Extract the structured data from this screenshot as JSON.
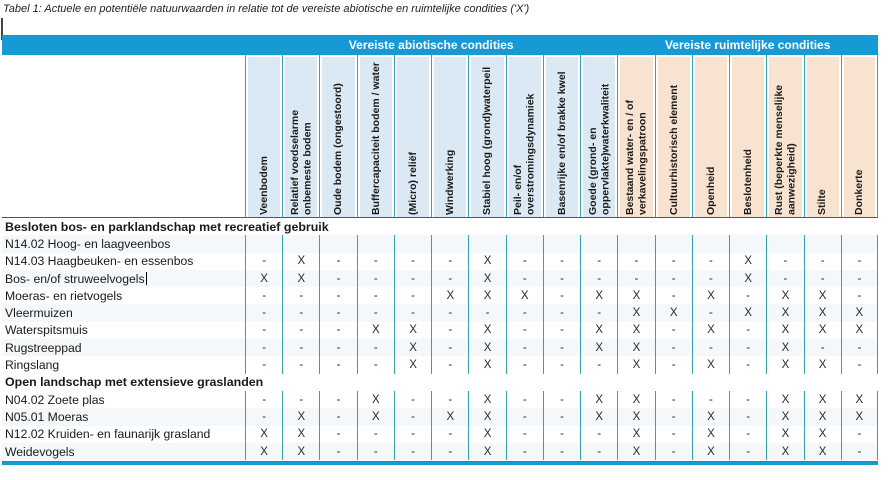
{
  "title": "Tabel 1: Actuele en potentiële natuurwaarden in relatie tot de vereiste abiotische en ruimtelijke condities ('X')",
  "colors": {
    "header_bar_blue": "#1799D5",
    "abiotic_header_bg": "#DBE9F4",
    "spatial_header_bg": "#F8E3D0",
    "column_divider_teal": "#35A3AB",
    "header_underline": "#2B666E",
    "text": "#1A1A1A"
  },
  "table": {
    "groups": [
      {
        "label": "Vereiste abiotische condities",
        "col_span": 10
      },
      {
        "label": "Vereiste ruimtelijke condities",
        "col_span": 7
      }
    ],
    "columns": [
      "Veenbodem",
      "Relatief voedselarme onbemeste bodem",
      "Oude bodem (ongestoord)",
      "Buffercapaciteit bodem / water",
      "(Micro) reliëf",
      "Windwerking",
      "Stabiel hoog (grond)waterpeil",
      "Peil- en/of overstromingsdynamiek",
      "Basenrijke en/of brakke kwel",
      "Goede (grond- en oppervlakte)waterkwaliteit",
      "Bestaand water- en / of verkavelingspatroon",
      "Cultuurhistorisch element",
      "Openheid",
      "Beslotenheid",
      "Rust (beperkte menselijke aanwezigheid)",
      "Stilte",
      "Donkerte"
    ],
    "sections": [
      {
        "header": "Besloten bos- en parklandschap met recreatief gebruik",
        "rows": [
          {
            "label": "N14.02 Hoog- en laagveenbos",
            "values": [
              "",
              "",
              "",
              "",
              "",
              "",
              "",
              "",
              "",
              "",
              "",
              "",
              "",
              "",
              "",
              "",
              ""
            ]
          },
          {
            "label": "N14.03 Haagbeuken- en essenbos",
            "values": [
              "-",
              "X",
              "-",
              "-",
              "-",
              "-",
              "X",
              "-",
              "-",
              "-",
              "-",
              "-",
              "-",
              "X",
              "-",
              "-",
              "-"
            ]
          },
          {
            "label": "Bos- en/of struweelvogels",
            "caret": true,
            "values": [
              "X",
              "X",
              "-",
              "-",
              "-",
              "-",
              "X",
              "-",
              "-",
              "-",
              "-",
              "-",
              "-",
              "X",
              "-",
              "-",
              "-"
            ]
          },
          {
            "label": "Moeras- en rietvogels",
            "values": [
              "-",
              "-",
              "-",
              "-",
              "-",
              "X",
              "X",
              "X",
              "-",
              "X",
              "X",
              "-",
              "X",
              "-",
              "X",
              "X",
              "-"
            ]
          },
          {
            "label": "Vleermuizen",
            "values": [
              "-",
              "-",
              "-",
              "-",
              "-",
              "-",
              "-",
              "-",
              "-",
              "-",
              "X",
              "X",
              "-",
              "X",
              "X",
              "X",
              "X"
            ]
          },
          {
            "label": "Waterspitsmuis",
            "values": [
              "-",
              "-",
              "-",
              "X",
              "X",
              "-",
              "X",
              "-",
              "-",
              "X",
              "X",
              "-",
              "X",
              "-",
              "X",
              "X",
              "X"
            ]
          },
          {
            "label": "Rugstreeppad",
            "values": [
              "-",
              "-",
              "-",
              "-",
              "X",
              "-",
              "X",
              "-",
              "-",
              "X",
              "X",
              "-",
              "-",
              "-",
              "X",
              "-",
              "-"
            ]
          },
          {
            "label": "Ringslang",
            "values": [
              "-",
              "-",
              "-",
              "-",
              "X",
              "-",
              "X",
              "-",
              "-",
              "-",
              "X",
              "-",
              "X",
              "-",
              "X",
              "X",
              "-"
            ]
          }
        ]
      },
      {
        "header": "Open landschap met extensieve graslanden",
        "rows": [
          {
            "label": "N04.02 Zoete plas",
            "values": [
              "-",
              "-",
              "-",
              "X",
              "-",
              "-",
              "X",
              "-",
              "-",
              "X",
              "X",
              "-",
              "-",
              "-",
              "X",
              "X",
              "X"
            ]
          },
          {
            "label": "N05.01 Moeras",
            "values": [
              "-",
              "X",
              "-",
              "X",
              "-",
              "X",
              "X",
              "-",
              "-",
              "X",
              "X",
              "-",
              "X",
              "-",
              "X",
              "X",
              "X"
            ]
          },
          {
            "label": "N12.02 Kruiden- en faunarijk grasland",
            "values": [
              "X",
              "X",
              "-",
              "-",
              "-",
              "-",
              "X",
              "-",
              "-",
              "-",
              "X",
              "-",
              "X",
              "-",
              "X",
              "X",
              "-"
            ]
          },
          {
            "label": "Weidevogels",
            "values": [
              "X",
              "X",
              "-",
              "-",
              "-",
              "-",
              "X",
              "-",
              "-",
              "-",
              "X",
              "-",
              "X",
              "-",
              "X",
              "X",
              "-"
            ]
          }
        ]
      }
    ]
  }
}
